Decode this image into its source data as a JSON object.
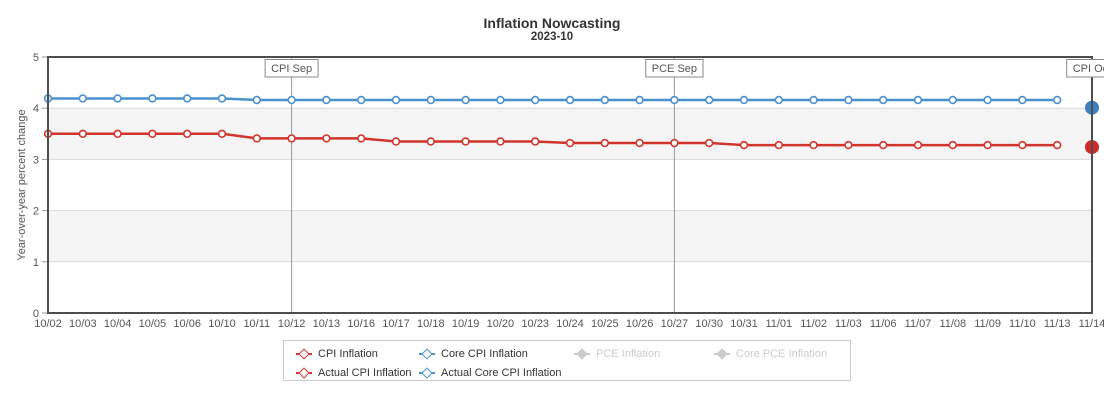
{
  "chart_data": {
    "type": "line",
    "title": "Inflation Nowcasting",
    "subtitle": "2023-10",
    "ylabel": "Year-over-year percent change",
    "ylim": [
      0,
      5
    ],
    "yticks": [
      0,
      1,
      2,
      3,
      4,
      5
    ],
    "grid": "horizontal gridlines at integers, alternating gray bands on 1-2 and 3-4",
    "legend_position": "bottom",
    "categories": [
      "10/02",
      "10/03",
      "10/04",
      "10/05",
      "10/06",
      "10/10",
      "10/11",
      "10/12",
      "10/13",
      "10/16",
      "10/17",
      "10/18",
      "10/19",
      "10/20",
      "10/23",
      "10/24",
      "10/25",
      "10/26",
      "10/27",
      "10/30",
      "10/31",
      "11/01",
      "11/02",
      "11/03",
      "11/06",
      "11/07",
      "11/08",
      "11/09",
      "11/10",
      "11/13",
      "11/14"
    ],
    "series": [
      {
        "name": "CPI Inflation",
        "color": "#d0342c",
        "marker": "open-circle",
        "values": [
          3.5,
          3.5,
          3.5,
          3.5,
          3.5,
          3.5,
          3.41,
          3.41,
          3.41,
          3.41,
          3.35,
          3.35,
          3.35,
          3.35,
          3.35,
          3.32,
          3.32,
          3.32,
          3.32,
          3.32,
          3.28,
          3.28,
          3.28,
          3.28,
          3.28,
          3.28,
          3.28,
          3.28,
          3.28,
          3.28,
          null
        ]
      },
      {
        "name": "Core CPI Inflation",
        "color": "#4a90cf",
        "marker": "open-circle",
        "values": [
          4.19,
          4.19,
          4.19,
          4.19,
          4.19,
          4.19,
          4.16,
          4.16,
          4.16,
          4.16,
          4.16,
          4.16,
          4.16,
          4.16,
          4.16,
          4.16,
          4.16,
          4.16,
          4.16,
          4.16,
          4.16,
          4.16,
          4.16,
          4.16,
          4.16,
          4.16,
          4.16,
          4.16,
          4.16,
          4.16,
          null
        ]
      },
      {
        "name": "Actual CPI Inflation",
        "color": "#d02a28",
        "marker": "solid-circle",
        "points": [
          {
            "category": "11/14",
            "value": 3.24
          }
        ]
      },
      {
        "name": "Actual Core CPI Inflation",
        "color": "#3d7ec0",
        "marker": "solid-circle",
        "points": [
          {
            "category": "11/14",
            "value": 4.01
          }
        ]
      }
    ],
    "annotations": [
      {
        "label": "CPI Sep",
        "category": "10/12"
      },
      {
        "label": "PCE Sep",
        "category": "10/27"
      },
      {
        "label": "CPI Oct",
        "category": "11/14"
      }
    ],
    "legend": [
      {
        "label": "CPI Inflation",
        "color": "#d0342c",
        "enabled": true
      },
      {
        "label": "Core CPI Inflation",
        "color": "#4a90cf",
        "enabled": true
      },
      {
        "label": "PCE Inflation",
        "color": "#cccccc",
        "enabled": false
      },
      {
        "label": "Core PCE Inflation",
        "color": "#cccccc",
        "enabled": false
      },
      {
        "label": "Actual CPI Inflation",
        "color": "#d0342c",
        "enabled": true
      },
      {
        "label": "Actual Core CPI Inflation",
        "color": "#4a90cf",
        "enabled": true
      }
    ]
  },
  "colors": {
    "plot_border": "#4d4d4d",
    "gridline": "#d9d9d9",
    "band": "#f5f5f5",
    "plot_line": "#999999",
    "axis_text": "#555555",
    "title_text": "#333333",
    "disabled_text": "#cccccc"
  }
}
